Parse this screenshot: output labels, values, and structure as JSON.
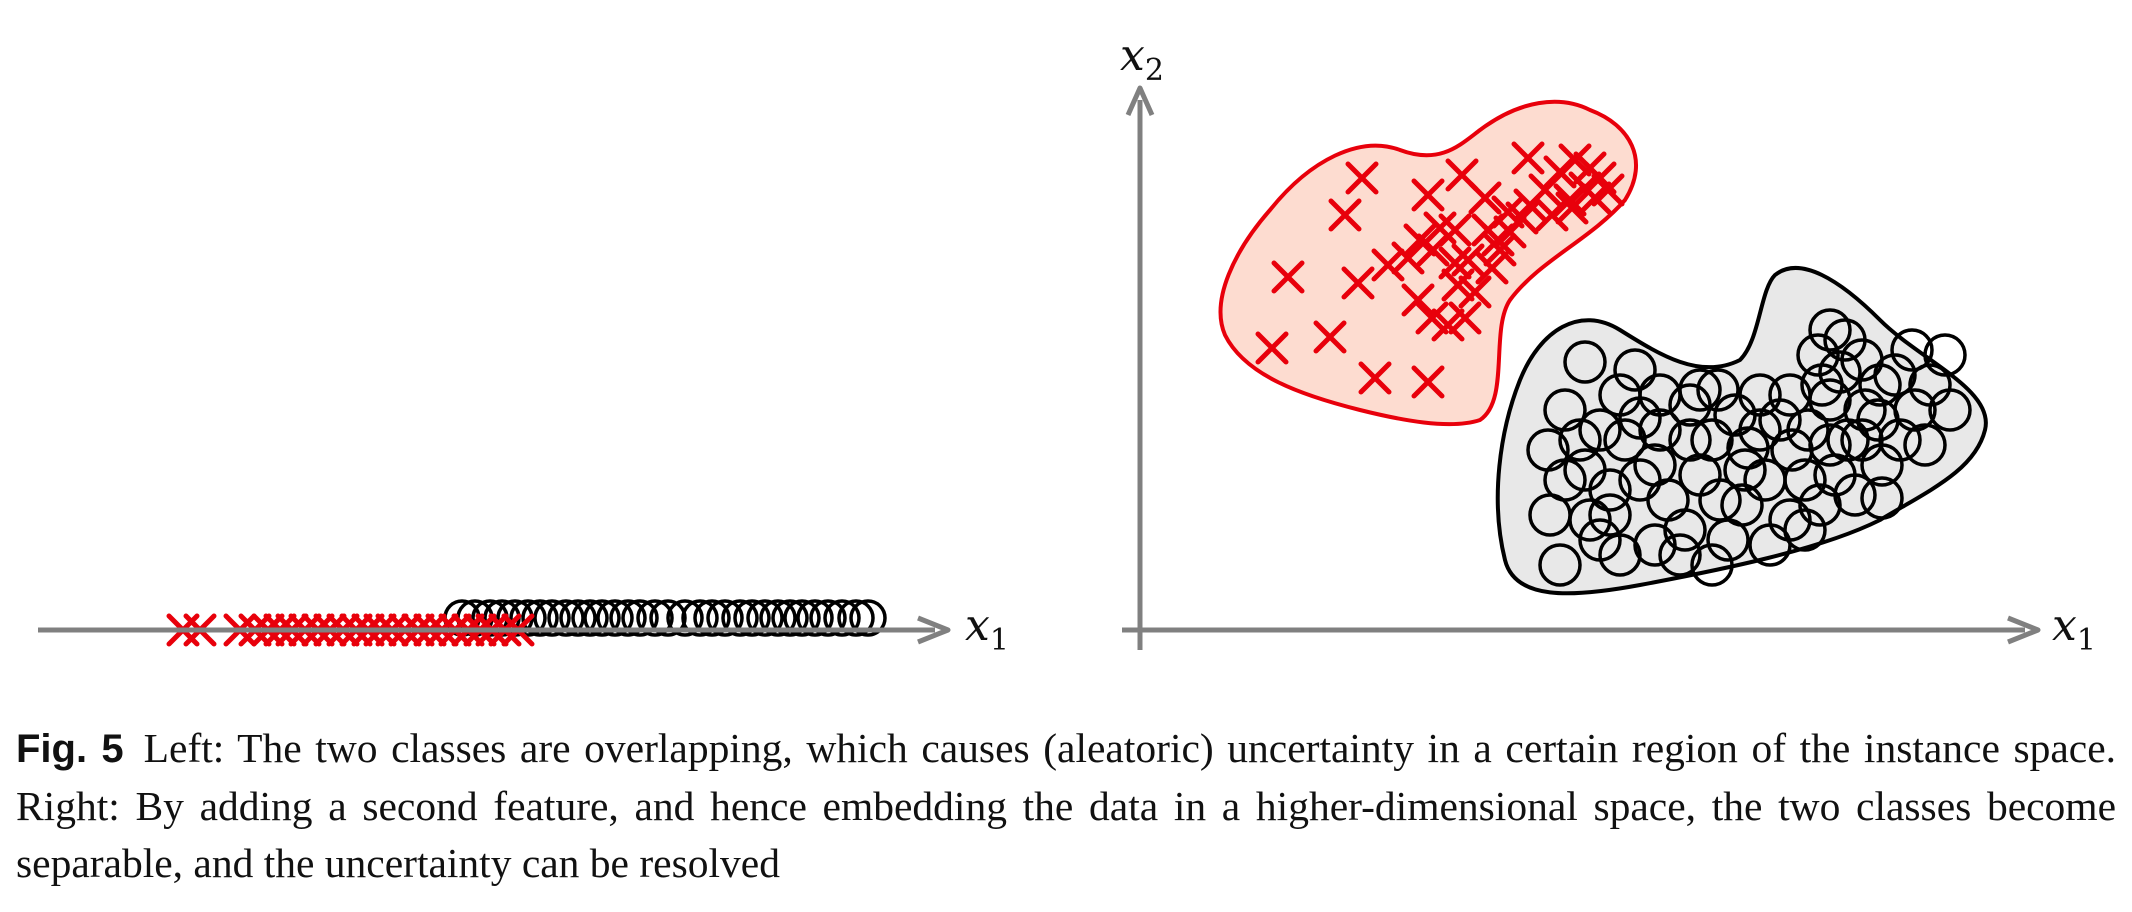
{
  "figure": {
    "left_panel": {
      "x_axis_label": "x",
      "x_axis_subscript": "1",
      "markers": {
        "cross_color": "#e8000b",
        "circle_color": "#000000"
      }
    },
    "right_panel": {
      "x_axis_label": "x",
      "x_axis_subscript": "1",
      "y_axis_label": "x",
      "y_axis_subscript": "2",
      "red_region_fill": "#fddcd0",
      "red_region_stroke": "#e8000b",
      "gray_region_fill": "#e8e8e8",
      "gray_region_stroke": "#000000"
    },
    "axis_color": "#808080"
  },
  "caption": {
    "label": "Fig. 5",
    "text": "Left: The two classes are overlapping, which causes (aleatoric) uncertainty in a certain region of the instance space. Right: By adding a second feature, and hence embedding the data in a higher-dimensional space, the two classes become separable, and the uncertainty can be resolved"
  }
}
